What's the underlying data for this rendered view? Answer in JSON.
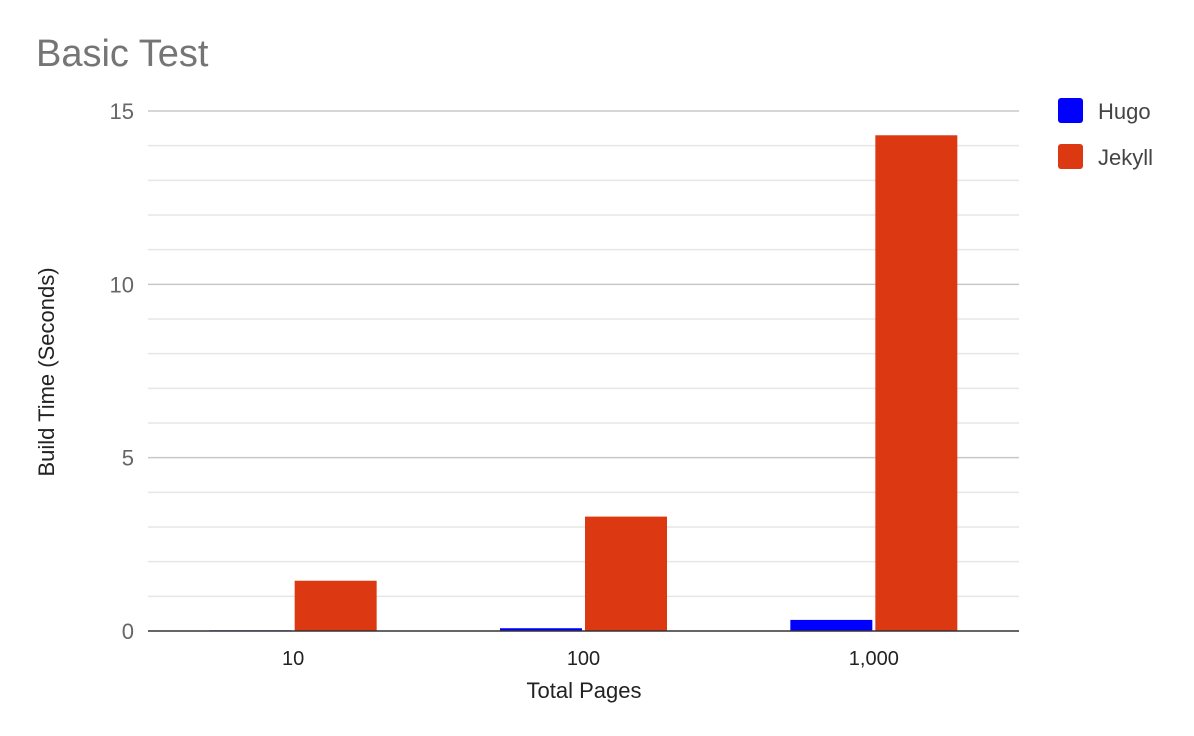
{
  "chart_data": {
    "type": "bar",
    "title": "Basic Test",
    "xlabel": "Total Pages",
    "ylabel": "Build Time (Seconds)",
    "categories": [
      "10",
      "100",
      "1,000"
    ],
    "series": [
      {
        "name": "Hugo",
        "color": "#0000ff",
        "values": [
          0.02,
          0.08,
          0.32
        ]
      },
      {
        "name": "Jekyll",
        "color": "#dc3912",
        "values": [
          1.45,
          3.3,
          14.3
        ]
      }
    ],
    "ylim": [
      0,
      15
    ],
    "yticks": [
      "0",
      "5",
      "10",
      "15"
    ],
    "ytick_values": [
      0,
      5,
      10,
      15
    ],
    "minor_grid_step": 1,
    "grid": true,
    "legend": "right"
  }
}
